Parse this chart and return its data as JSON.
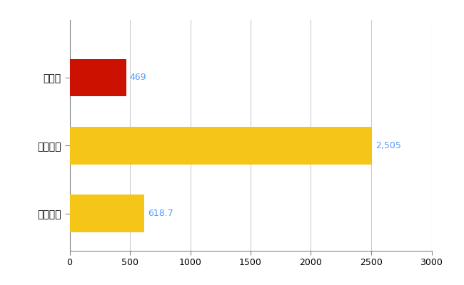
{
  "categories": [
    "宮崎県",
    "全国最大",
    "全国平均"
  ],
  "values": [
    469,
    2505,
    618.7
  ],
  "bar_colors": [
    "#cc1100",
    "#f5c518",
    "#f5c518"
  ],
  "value_labels": [
    "469",
    "2,505",
    "618.7"
  ],
  "xlim": [
    0,
    3000
  ],
  "xticks": [
    0,
    500,
    1000,
    1500,
    2000,
    2500,
    3000
  ],
  "background_color": "#ffffff",
  "grid_color": "#cccccc",
  "label_color": "#5599ff",
  "bar_height": 0.55,
  "figsize": [
    6.5,
    4.0
  ],
  "dpi": 100
}
